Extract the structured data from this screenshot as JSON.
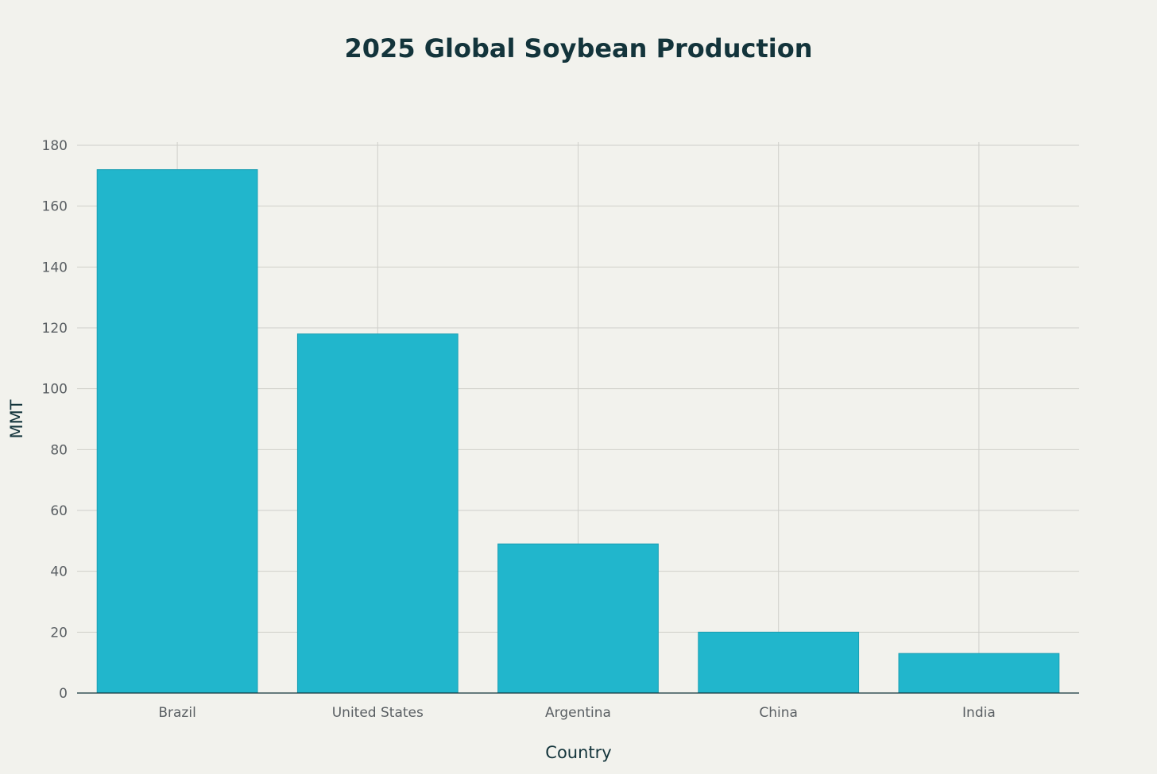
{
  "chart_data": {
    "type": "bar",
    "title": "2025 Global Soybean Production",
    "xlabel": "Country",
    "ylabel": "MMT",
    "categories": [
      "Brazil",
      "United States",
      "Argentina",
      "China",
      "India"
    ],
    "values": [
      172,
      118,
      49,
      20,
      13
    ],
    "ylim": [
      0,
      180
    ],
    "yticks": [
      0,
      20,
      40,
      60,
      80,
      100,
      120,
      140,
      160,
      180
    ],
    "grid": true,
    "bar_color": "#21b6cc",
    "background": "#f2f2ed"
  }
}
